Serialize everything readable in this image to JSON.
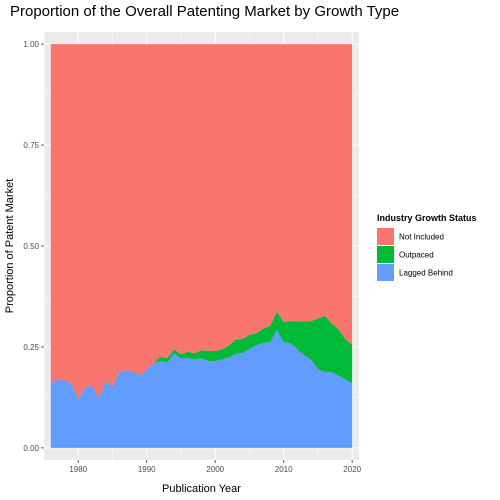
{
  "chart_data": {
    "type": "area",
    "stacked": true,
    "title": "Proportion of the Overall Patenting Market by Growth Type",
    "xlabel": "Publication Year",
    "ylabel": "Proportion of Patent Market",
    "xlim": [
      1975,
      2021
    ],
    "ylim": [
      -0.03,
      1.03
    ],
    "x_ticks": [
      1980,
      1990,
      2000,
      2010,
      2020
    ],
    "y_ticks": [
      0.0,
      0.25,
      0.5,
      0.75,
      1.0
    ],
    "y_tick_labels": [
      "0.00",
      "0.25",
      "0.50",
      "0.75",
      "1.00"
    ],
    "grid": true,
    "legend": {
      "title": "Industry Growth Status",
      "placement": "right"
    },
    "x": [
      1976,
      1977,
      1978,
      1979,
      1980,
      1981,
      1982,
      1983,
      1984,
      1985,
      1986,
      1987,
      1988,
      1989,
      1990,
      1991,
      1992,
      1993,
      1994,
      1995,
      1996,
      1997,
      1998,
      1999,
      2000,
      2001,
      2002,
      2003,
      2004,
      2005,
      2006,
      2007,
      2008,
      2009,
      2010,
      2011,
      2012,
      2013,
      2014,
      2015,
      2016,
      2017,
      2018,
      2019,
      2020
    ],
    "series": [
      {
        "name": "Not Included",
        "color": "#F8766D",
        "values": [
          0.84,
          0.83,
          0.833,
          0.84,
          0.88,
          0.85,
          0.845,
          0.877,
          0.835,
          0.848,
          0.812,
          0.808,
          0.812,
          0.82,
          0.806,
          0.79,
          0.775,
          0.778,
          0.756,
          0.768,
          0.762,
          0.766,
          0.758,
          0.76,
          0.76,
          0.756,
          0.746,
          0.732,
          0.73,
          0.72,
          0.716,
          0.705,
          0.698,
          0.663,
          0.688,
          0.686,
          0.686,
          0.686,
          0.686,
          0.68,
          0.673,
          0.692,
          0.706,
          0.73,
          0.745
        ]
      },
      {
        "name": "Outpaced",
        "color": "#00BA38",
        "values": [
          0.0,
          0.0,
          0.0,
          0.0,
          0.0,
          0.0,
          0.0,
          0.0,
          0.0,
          0.0,
          0.0,
          0.0,
          0.0,
          0.0,
          0.0,
          0.0,
          0.01,
          0.01,
          0.01,
          0.01,
          0.015,
          0.015,
          0.02,
          0.025,
          0.025,
          0.025,
          0.03,
          0.035,
          0.035,
          0.035,
          0.03,
          0.035,
          0.04,
          0.045,
          0.05,
          0.055,
          0.07,
          0.085,
          0.095,
          0.125,
          0.14,
          0.12,
          0.115,
          0.1,
          0.095
        ]
      },
      {
        "name": "Lagged Behind",
        "color": "#619CFF",
        "values": [
          0.16,
          0.17,
          0.167,
          0.16,
          0.12,
          0.15,
          0.155,
          0.123,
          0.165,
          0.152,
          0.188,
          0.192,
          0.188,
          0.18,
          0.194,
          0.21,
          0.215,
          0.212,
          0.234,
          0.222,
          0.223,
          0.219,
          0.222,
          0.215,
          0.215,
          0.219,
          0.224,
          0.233,
          0.235,
          0.245,
          0.254,
          0.26,
          0.262,
          0.292,
          0.262,
          0.259,
          0.244,
          0.229,
          0.219,
          0.195,
          0.187,
          0.188,
          0.179,
          0.17,
          0.16
        ]
      }
    ]
  }
}
